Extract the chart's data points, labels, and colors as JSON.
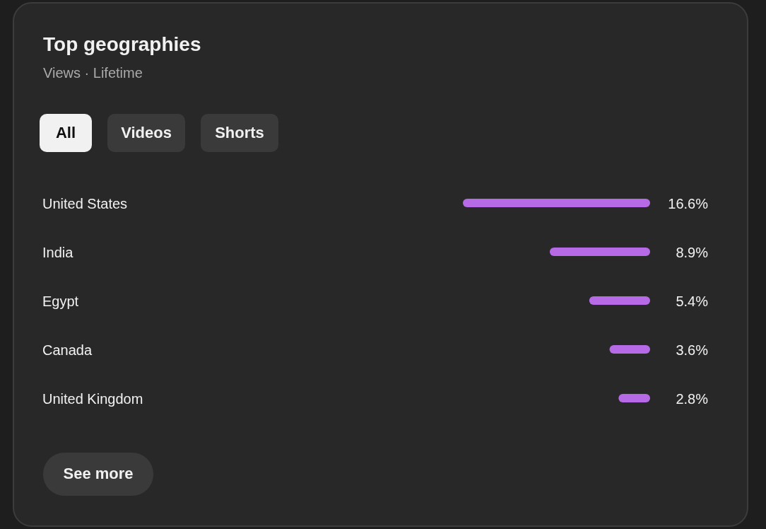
{
  "chart_data": {
    "type": "bar",
    "orientation": "horizontal",
    "title": "Top geographies",
    "subtitle": "Views · Lifetime",
    "categories": [
      "United States",
      "India",
      "Egypt",
      "Canada",
      "United Kingdom"
    ],
    "values": [
      16.6,
      8.9,
      5.4,
      3.6,
      2.8
    ],
    "value_labels": [
      "16.6%",
      "8.9%",
      "5.4%",
      "3.6%",
      "2.8%"
    ],
    "color": "#b66ae6",
    "annotations": [
      "All",
      "Videos",
      "Shorts",
      "See more"
    ]
  }
}
